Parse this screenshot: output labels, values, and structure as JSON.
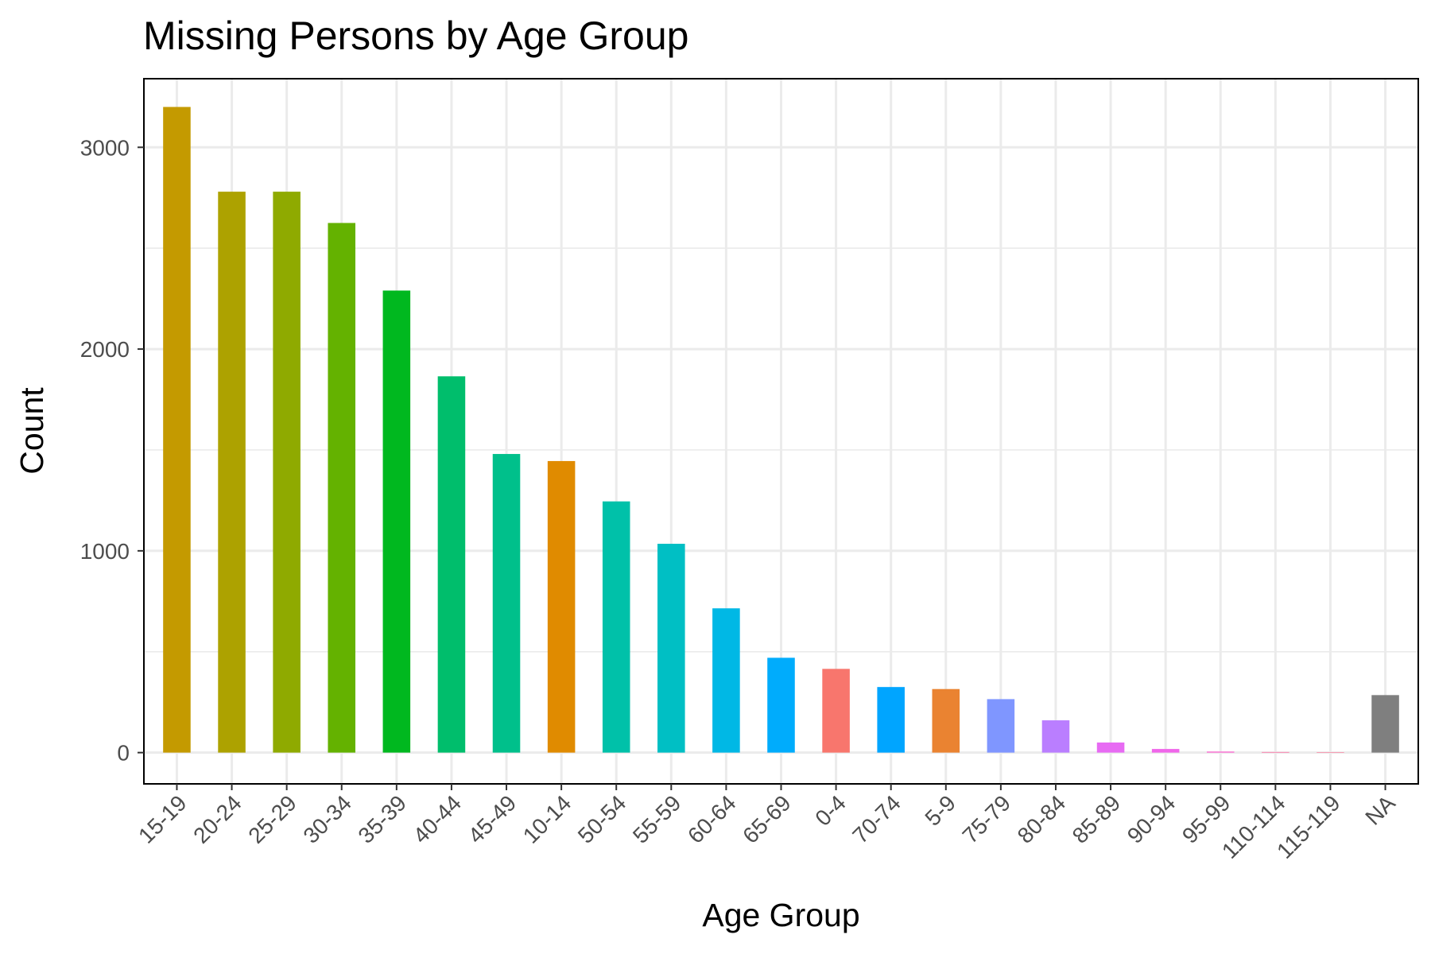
{
  "chart_data": {
    "type": "bar",
    "title": "Missing Persons by Age Group",
    "xlabel": "Age Group",
    "ylabel": "Count",
    "categories": [
      "15-19",
      "20-24",
      "25-29",
      "30-34",
      "35-39",
      "40-44",
      "45-49",
      "10-14",
      "50-54",
      "55-59",
      "60-64",
      "65-69",
      "0-4",
      "70-74",
      "5-9",
      "75-79",
      "80-84",
      "85-89",
      "90-94",
      "95-99",
      "110-114",
      "115-119",
      "NA"
    ],
    "values": [
      3200,
      2780,
      2780,
      2625,
      2290,
      1865,
      1480,
      1445,
      1245,
      1035,
      715,
      470,
      415,
      325,
      315,
      265,
      160,
      50,
      18,
      5,
      3,
      2,
      285
    ],
    "colors": [
      "#C49A00",
      "#ADA200",
      "#8FAA00",
      "#64B200",
      "#00B81F",
      "#00BE6C",
      "#00C08B",
      "#E08B00",
      "#00C1A9",
      "#00BFC4",
      "#00B8E5",
      "#00ACFC",
      "#F8766D",
      "#00A5FF",
      "#EA8331",
      "#7F96FF",
      "#BA7EFF",
      "#E76BF3",
      "#F066EA",
      "#FD61D1",
      "#FF6AA0",
      "#FF6C91",
      "#7F7F7F"
    ],
    "ylim": [
      -155,
      3340
    ],
    "yticks": [
      0,
      1000,
      2000,
      3000
    ],
    "yticks_minor": [
      500,
      1500,
      2500
    ],
    "grid": true,
    "legend": "none"
  }
}
